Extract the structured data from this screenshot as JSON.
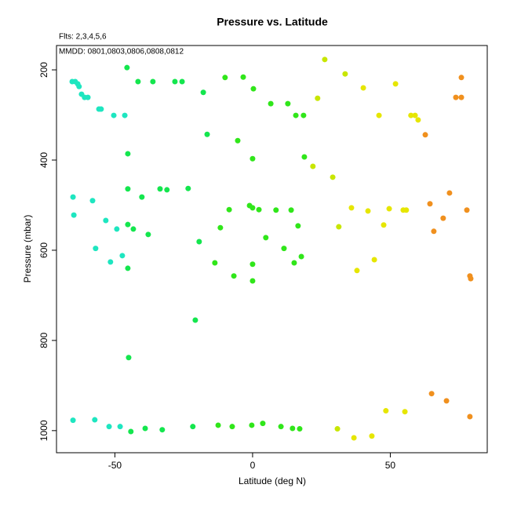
{
  "chart_data": {
    "type": "scatter",
    "title": "Pressure vs. Latitude",
    "subtitle": "Flts: 2,3,4,5,6",
    "annotation": "MMDD: 0801,0803,0806,0808,0812",
    "x_label": "Latitude (deg N)",
    "y_label": "Pressure (mbar)",
    "xlim": [
      -71.2,
      85.2
    ],
    "xticks": [
      -50,
      0,
      50
    ],
    "ylim": [
      1049,
      146
    ],
    "yticks": [
      200,
      400,
      600,
      800,
      1000
    ],
    "series": [
      {
        "color": "#1ee6c0",
        "x": [
          -65.5,
          -64.4,
          -63.5,
          -63.0,
          -62.1,
          -61.0,
          -59.8,
          -55.8,
          -55.0,
          -50.4,
          -46.4,
          -65.2,
          -64.9,
          -58.1,
          -53.3,
          -49.3,
          -57.0,
          -51.6,
          -47.3,
          -65.2,
          -57.3,
          -52.1,
          -48.1
        ],
        "y": [
          226,
          226,
          231,
          237,
          254,
          261,
          261,
          287,
          287,
          301,
          301,
          482,
          522,
          490,
          534,
          553,
          596,
          626,
          612,
          977,
          976,
          991,
          991
        ]
      },
      {
        "color": "#14e64e",
        "x": [
          -45.6,
          -45.3,
          -45.3,
          -40.2,
          -45.3,
          -43.3,
          -37.9,
          -45.3,
          -45.0,
          -44.2,
          -39.0,
          -32.8,
          -41.6,
          -36.2,
          -28.2,
          -25.6,
          -33.6,
          -31.1,
          -23.4,
          -17.9,
          -16.5,
          -19.4,
          -20.8,
          -21.7
        ],
        "y": [
          195,
          386,
          464,
          482,
          543,
          553,
          565,
          640,
          838,
          1002,
          995,
          998,
          226,
          226,
          226,
          226,
          464,
          466,
          463,
          250,
          343,
          581,
          755,
          991
        ]
      },
      {
        "color": "#30e61a",
        "x": [
          -10.0,
          -3.4,
          0.3,
          -5.4,
          0.0,
          -8.5,
          -1.1,
          0.0,
          2.3,
          -11.7,
          -13.7,
          -6.8,
          -12.5,
          -7.4,
          -0.3,
          3.7,
          10.3,
          0.0,
          0.0,
          4.8,
          8.5,
          6.6,
          12.8,
          15.7,
          18.5,
          18.8,
          14.0,
          11.4,
          16.5,
          15.1,
          17.7,
          14.5,
          17.1
        ],
        "y": [
          217,
          216,
          242,
          357,
          397,
          510,
          501,
          506,
          510,
          550,
          628,
          657,
          988,
          991,
          988,
          984,
          991,
          631,
          668,
          572,
          511,
          275,
          275,
          301,
          301,
          393,
          511,
          596,
          546,
          628,
          614,
          995,
          996
        ]
      },
      {
        "color": "#c8e600",
        "x": [
          21.9,
          23.6,
          26.2,
          29.1,
          33.6,
          31.3,
          30.8
        ],
        "y": [
          414,
          263,
          177,
          438,
          209,
          548,
          996
        ]
      },
      {
        "color": "#e6e600",
        "x": [
          35.9,
          40.2,
          41.9,
          37.9,
          44.2,
          47.6,
          45.9,
          49.6,
          51.9,
          54.7,
          55.8,
          48.4,
          55.3,
          36.8,
          43.3,
          57.5,
          59.0,
          60.1
        ],
        "y": [
          506,
          240,
          513,
          645,
          621,
          544,
          301,
          508,
          231,
          511,
          511,
          956,
          958,
          1016,
          1012,
          301,
          301,
          311
        ]
      },
      {
        "color": "#f0901e",
        "x": [
          62.7,
          64.4,
          65.8,
          69.2,
          71.5,
          75.8,
          73.8,
          75.8,
          77.8,
          65.0,
          70.4,
          78.9,
          79.2,
          78.9
        ],
        "y": [
          344,
          497,
          558,
          529,
          473,
          217,
          261,
          261,
          511,
          918,
          934,
          657,
          663,
          969
        ]
      }
    ]
  }
}
